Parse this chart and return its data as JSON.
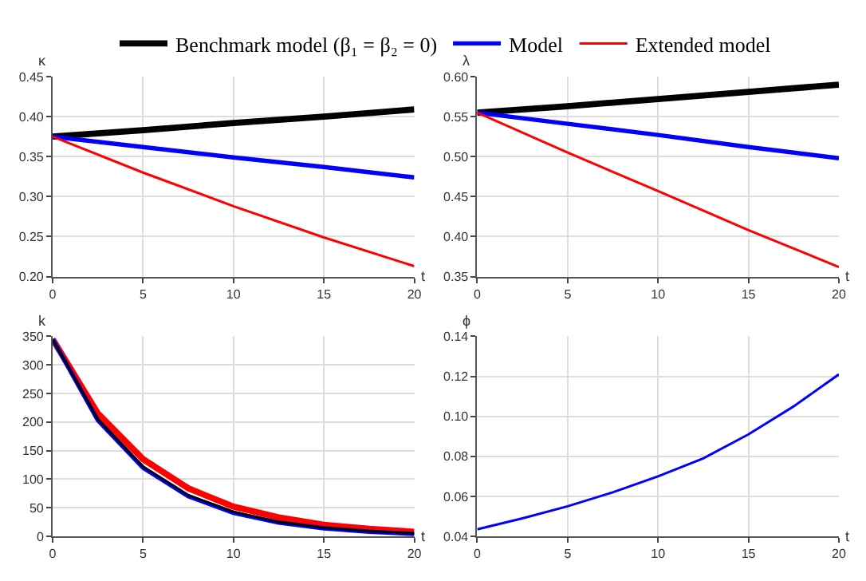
{
  "chart_data": [
    {
      "type": "line",
      "ylabel": "κ",
      "xlabel": "t",
      "x": [
        0,
        5,
        10,
        15,
        20
      ],
      "xlim": [
        0,
        20
      ],
      "xticks": [
        0,
        5,
        10,
        15,
        20
      ],
      "ylim": [
        0.2,
        0.45
      ],
      "yticks": [
        {
          "value": 0.2,
          "label": "0.20"
        },
        {
          "value": 0.25,
          "label": "0.25"
        },
        {
          "value": 0.3,
          "label": "0.30"
        },
        {
          "value": 0.35,
          "label": "0.35"
        },
        {
          "value": 0.4,
          "label": "0.40"
        },
        {
          "value": 0.45,
          "label": "0.45"
        }
      ],
      "grid": true,
      "legend": "top",
      "series": [
        {
          "name": "Benchmark model (β₁ = β₂ = 0)",
          "color": "#000000",
          "values": [
            0.375,
            0.383,
            0.392,
            0.4,
            0.409
          ]
        },
        {
          "name": "Model",
          "color": "#0000ff",
          "values": [
            0.375,
            0.362,
            0.349,
            0.337,
            0.324
          ]
        },
        {
          "name": "Extended model",
          "color": "#ff0000",
          "values": [
            0.375,
            0.33,
            0.288,
            0.249,
            0.213
          ]
        }
      ]
    },
    {
      "type": "line",
      "ylabel": "λ",
      "xlabel": "t",
      "x": [
        0,
        5,
        10,
        15,
        20
      ],
      "xlim": [
        0,
        20
      ],
      "xticks": [
        0,
        5,
        10,
        15,
        20
      ],
      "ylim": [
        0.35,
        0.6
      ],
      "yticks": [
        {
          "value": 0.35,
          "label": "0.35"
        },
        {
          "value": 0.4,
          "label": "0.40"
        },
        {
          "value": 0.45,
          "label": "0.45"
        },
        {
          "value": 0.5,
          "label": "0.50"
        },
        {
          "value": 0.55,
          "label": "0.55"
        },
        {
          "value": 0.6,
          "label": "0.60"
        }
      ],
      "grid": true,
      "series": [
        {
          "color": "#000000",
          "values": [
            0.555,
            0.563,
            0.572,
            0.581,
            0.59
          ]
        },
        {
          "color": "#0000ff",
          "values": [
            0.555,
            0.541,
            0.527,
            0.512,
            0.498
          ]
        },
        {
          "color": "#ff0000",
          "values": [
            0.555,
            0.505,
            0.457,
            0.408,
            0.362
          ]
        }
      ]
    },
    {
      "type": "line",
      "ylabel": "k",
      "xlabel": "t",
      "x": [
        0,
        2.5,
        5,
        7.5,
        10,
        12.5,
        15,
        17.5,
        20
      ],
      "xlim": [
        0,
        20
      ],
      "xticks": [
        0,
        5,
        10,
        15,
        20
      ],
      "ylim": [
        0,
        350
      ],
      "yticks": [
        0,
        50,
        100,
        150,
        200,
        250,
        300,
        350
      ],
      "grid": true,
      "series": [
        {
          "color": "#ff0000",
          "values": [
            345,
            215,
            135,
            84,
            52,
            33,
            20,
            13,
            8
          ]
        },
        {
          "color": "#0000ff",
          "values": [
            345,
            203,
            120,
            70,
            41,
            24,
            14,
            8,
            4
          ]
        },
        {
          "color": "#000000",
          "values": [
            345,
            205,
            122,
            72,
            43,
            25,
            15,
            9,
            5
          ]
        }
      ]
    },
    {
      "type": "line",
      "ylabel": "ϕ",
      "xlabel": "t",
      "x": [
        0,
        2.5,
        5,
        7.5,
        10,
        12.5,
        15,
        17.5,
        20
      ],
      "xlim": [
        0,
        20
      ],
      "xticks": [
        0,
        5,
        10,
        15,
        20
      ],
      "ylim": [
        0.04,
        0.14
      ],
      "yticks": [
        {
          "value": 0.04,
          "label": "0.04"
        },
        {
          "value": 0.06,
          "label": "0.06"
        },
        {
          "value": 0.08,
          "label": "0.08"
        },
        {
          "value": 0.1,
          "label": "0.10"
        },
        {
          "value": 0.12,
          "label": "0.12"
        },
        {
          "value": 0.14,
          "label": "0.14"
        }
      ],
      "grid": true,
      "series": [
        {
          "color": "#0000ff",
          "values": [
            0.0435,
            0.049,
            0.055,
            0.062,
            0.07,
            0.079,
            0.091,
            0.105,
            0.121
          ]
        }
      ]
    }
  ]
}
